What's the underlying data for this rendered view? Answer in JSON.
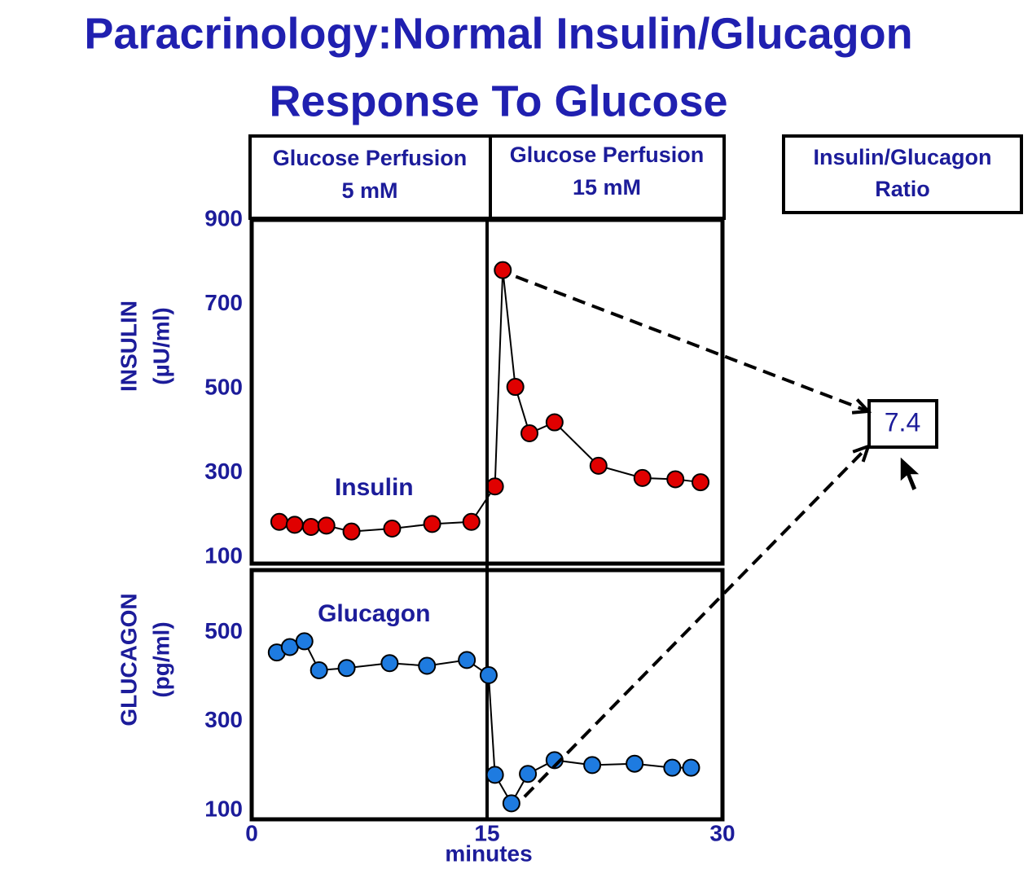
{
  "title": [
    "Paracrinology:Normal Insulin/Glucagon",
    "Response To Glucose"
  ],
  "headers": [
    [
      "Glucose Perfusion",
      "5 mM"
    ],
    [
      "Glucose Perfusion",
      "15 mM"
    ]
  ],
  "ratio": {
    "label": [
      "Insulin/Glucagon",
      "Ratio"
    ],
    "value": 7.4
  },
  "chart_data": [
    {
      "type": "line",
      "y_label": [
        "INSULIN",
        "(µU/ml)"
      ],
      "series": [
        {
          "name": "Insulin",
          "color": "#e00000",
          "x": [
            1.76,
            2.74,
            3.78,
            4.76,
            6.36,
            8.95,
            11.5,
            14.0,
            15.5,
            16.0,
            16.8,
            17.7,
            19.3,
            22.1,
            24.9,
            27.0,
            28.6
          ],
          "values": [
            184,
            177,
            172,
            175,
            161,
            168,
            179,
            184,
            268,
            781,
            504,
            394,
            420,
            317,
            288,
            285,
            278
          ]
        }
      ],
      "xlim": [
        0,
        30
      ],
      "ylim": [
        85,
        900
      ],
      "yticks": [
        100,
        300,
        500,
        700,
        900
      ]
    },
    {
      "type": "line",
      "y_label": [
        "GLUCAGON",
        "(pg/ml)"
      ],
      "x_label": "minutes",
      "series": [
        {
          "name": "Glucagon",
          "color": "#1e7be0",
          "x": [
            1.6,
            2.43,
            3.36,
            4.29,
            6.05,
            8.79,
            11.17,
            13.71,
            15.1,
            15.5,
            16.55,
            17.6,
            19.3,
            21.7,
            24.4,
            26.8,
            28.0
          ],
          "values": [
            455,
            467,
            480,
            415,
            420,
            431,
            425,
            438,
            404,
            180,
            116,
            182,
            213,
            202,
            205,
            196,
            196
          ]
        }
      ],
      "xlim": [
        0,
        30
      ],
      "ylim": [
        80,
        640
      ],
      "xticks": [
        0,
        15,
        30
      ],
      "yticks": [
        100,
        300,
        500
      ]
    }
  ]
}
